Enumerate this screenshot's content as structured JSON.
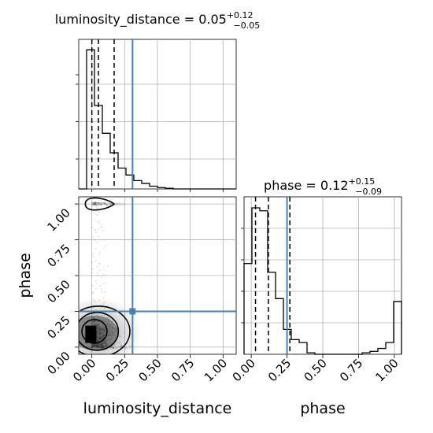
{
  "chart_data": {
    "type": "corner",
    "truth_color": "#4682b4",
    "parameters": [
      {
        "name": "luminosity_distance",
        "axis_label": "luminosity_distance",
        "title_prefix": "luminosity_distance = ",
        "median": "0.05",
        "err_plus": "+0.12",
        "err_minus": "−0.05",
        "truth": 0.31,
        "quantiles": [
          0.0,
          0.05,
          0.17
        ],
        "range": [
          -0.1,
          1.1
        ],
        "ticks": [
          0.0,
          0.25,
          0.5,
          0.75,
          1.0
        ],
        "tick_labels": [
          "0.00",
          "0.25",
          "0.50",
          "0.75",
          "1.00"
        ],
        "hist_edges": [
          -0.1,
          -0.04,
          0.02,
          0.08,
          0.14,
          0.2,
          0.26,
          0.32,
          0.38,
          0.44,
          0.5,
          0.56,
          0.62,
          0.68,
          0.74,
          0.8,
          0.86,
          0.92,
          0.98,
          1.04,
          1.1
        ],
        "hist_values": [
          0.0,
          1.0,
          0.6,
          0.4,
          0.26,
          0.15,
          0.1,
          0.06,
          0.04,
          0.02,
          0.01,
          0.005,
          0.0,
          0.0,
          0.0,
          0.0,
          0.0,
          0.0,
          0.0,
          0.0
        ]
      },
      {
        "name": "phase",
        "axis_label": "phase",
        "title_prefix": "phase = ",
        "median": "0.12",
        "err_plus": "+0.15",
        "err_minus": "−0.09",
        "truth": 0.25,
        "quantiles": [
          0.03,
          0.12,
          0.27
        ],
        "range": [
          -0.05,
          1.05
        ],
        "ticks": [
          0.0,
          0.25,
          0.5,
          0.75,
          1.0
        ],
        "tick_labels": [
          "0.00",
          "0.25",
          "0.50",
          "0.75",
          "1.00"
        ],
        "hist_edges": [
          -0.05,
          0.005,
          0.06,
          0.115,
          0.17,
          0.225,
          0.28,
          0.335,
          0.39,
          0.445,
          0.5,
          0.555,
          0.61,
          0.665,
          0.72,
          0.775,
          0.83,
          0.885,
          0.94,
          0.995,
          1.05
        ],
        "hist_values": [
          0.62,
          1.0,
          0.98,
          0.56,
          0.38,
          0.17,
          0.1,
          0.08,
          0.01,
          0.0,
          0.0,
          0.0,
          0.0,
          0.0,
          0.0,
          0.01,
          0.02,
          0.04,
          0.08,
          0.36
        ]
      }
    ],
    "grid": true
  }
}
